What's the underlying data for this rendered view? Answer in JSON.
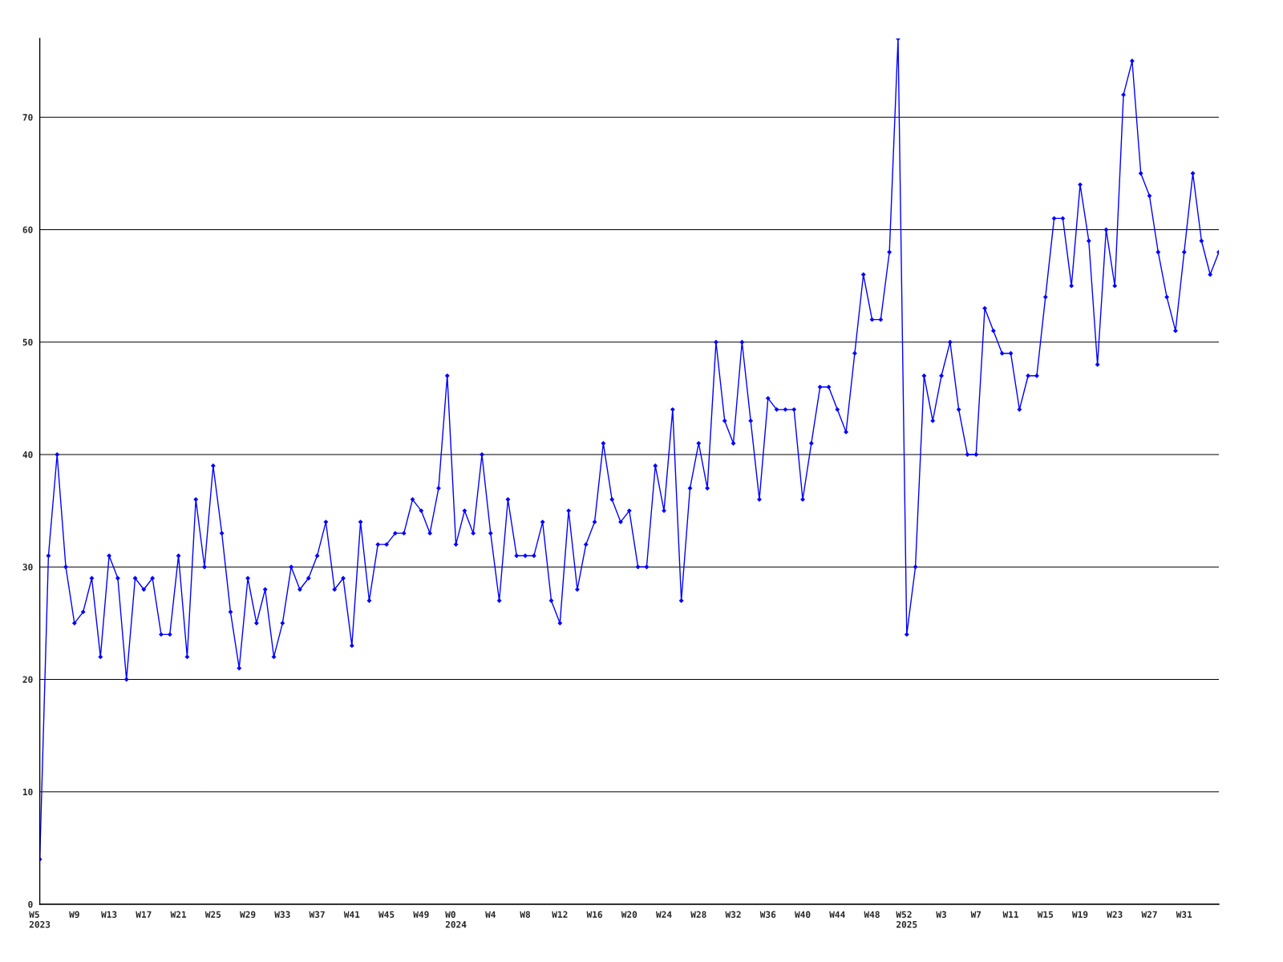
{
  "chart_data": {
    "type": "line",
    "categories": [
      "W5\n2023",
      null,
      null,
      null,
      "W9",
      null,
      null,
      null,
      "W13",
      null,
      null,
      null,
      "W17",
      null,
      null,
      null,
      "W21",
      null,
      null,
      null,
      "W25",
      null,
      null,
      null,
      "W29",
      null,
      null,
      null,
      "W33",
      null,
      null,
      null,
      "W37",
      null,
      null,
      null,
      "W41",
      null,
      null,
      null,
      "W45",
      null,
      null,
      null,
      "W49",
      null,
      null,
      null,
      "W0\n2024",
      null,
      null,
      null,
      "W4",
      null,
      null,
      null,
      "W8",
      null,
      null,
      null,
      "W12",
      null,
      null,
      null,
      "W16",
      null,
      null,
      null,
      "W20",
      null,
      null,
      null,
      "W24",
      null,
      null,
      null,
      "W28",
      null,
      null,
      null,
      "W32",
      null,
      null,
      null,
      "W36",
      null,
      null,
      null,
      "W40",
      null,
      null,
      null,
      "W44",
      null,
      null,
      null,
      "W48",
      null,
      null,
      null,
      "W52\n2025",
      null,
      null,
      null,
      "W3",
      null,
      null,
      null,
      "W7",
      null,
      null,
      null,
      "W11",
      null,
      null,
      null,
      "W15",
      null,
      null,
      null,
      "W19",
      null,
      null,
      null,
      "W23",
      null,
      null,
      null,
      "W27",
      null,
      null,
      null,
      "W31",
      null,
      null,
      null,
      null
    ],
    "series": [
      {
        "color": "#0000ff",
        "values": [
          4,
          31,
          40,
          30,
          25,
          26,
          29,
          22,
          31,
          29,
          20,
          29,
          28,
          29,
          24,
          24,
          31,
          22,
          36,
          30,
          39,
          33,
          26,
          21,
          29,
          25,
          28,
          22,
          25,
          30,
          28,
          29,
          31,
          34,
          28,
          29,
          23,
          34,
          27,
          32,
          32,
          33,
          33,
          36,
          35,
          33,
          37,
          47,
          32,
          35,
          33,
          40,
          33,
          27,
          36,
          31,
          31,
          31,
          34,
          27,
          25,
          35,
          28,
          32,
          34,
          41,
          36,
          34,
          35,
          30,
          30,
          39,
          35,
          44,
          27,
          37,
          41,
          37,
          50,
          43,
          41,
          50,
          43,
          36,
          45,
          44,
          44,
          44,
          36,
          41,
          46,
          46,
          44,
          42,
          49,
          56,
          52,
          52,
          58,
          77,
          24,
          30,
          47,
          43,
          47,
          50,
          44,
          40,
          40,
          53,
          51,
          49,
          49,
          44,
          47,
          47,
          54,
          61,
          61,
          55,
          64,
          59,
          48,
          60,
          55,
          72,
          75,
          65,
          63,
          58,
          54,
          51,
          58,
          65,
          59,
          56,
          58
        ]
      }
    ],
    "ylim": [
      0,
      77
    ],
    "yticks": [
      0,
      10,
      20,
      30,
      40,
      50,
      60,
      70
    ],
    "grid": "y",
    "marker": "diamond",
    "line_style": "solid"
  }
}
